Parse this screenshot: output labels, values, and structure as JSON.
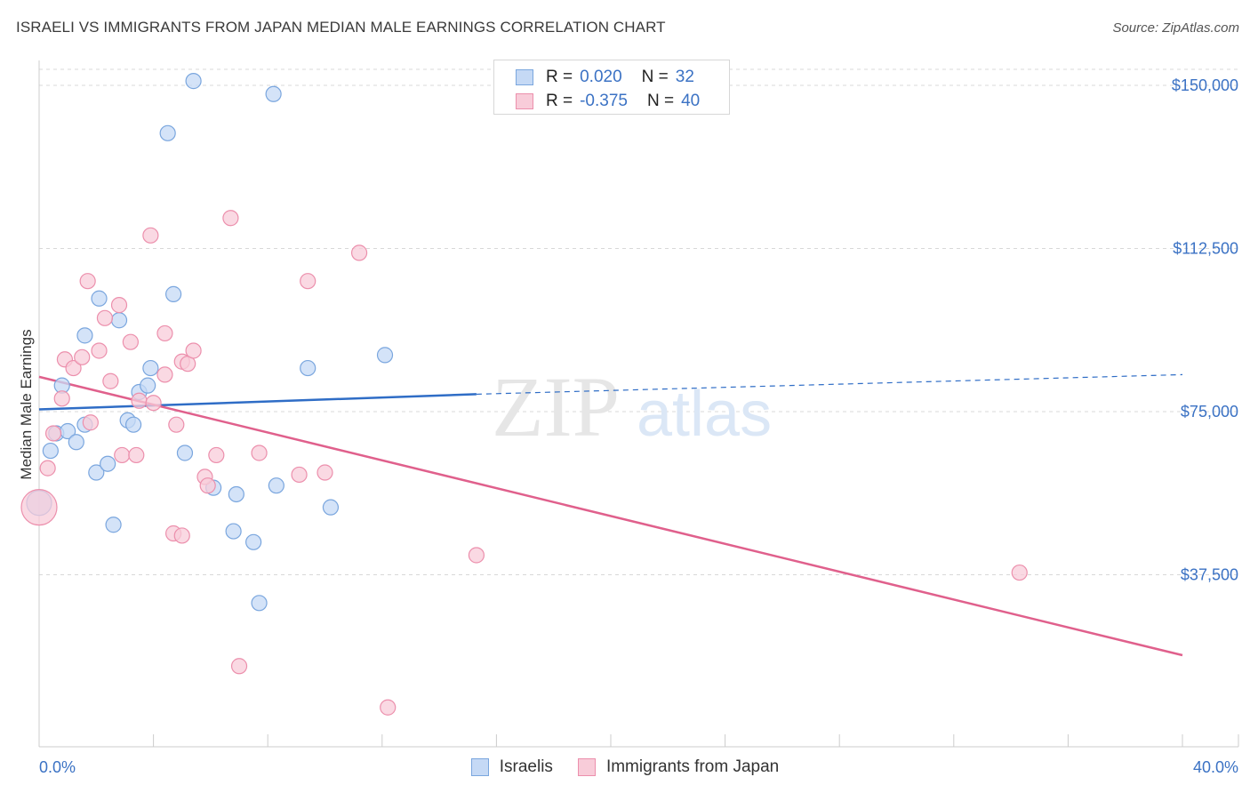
{
  "title": "ISRAELI VS IMMIGRANTS FROM JAPAN MEDIAN MALE EARNINGS CORRELATION CHART",
  "source": "Source: ZipAtlas.com",
  "watermark": {
    "zip": "ZIP",
    "atlas": "atlas"
  },
  "legend": {
    "rows": [
      {
        "r_label": "R =",
        "r_value": "0.020",
        "n_label": "N =",
        "n_value": "32"
      },
      {
        "r_label": "R =",
        "r_value": "-0.375",
        "n_label": "N =",
        "n_value": "40"
      }
    ]
  },
  "bottom_legend": {
    "israelis": "Israelis",
    "japan": "Immigrants from Japan"
  },
  "colors": {
    "israelis_fill": "#c5d9f5",
    "israelis_stroke": "#7aa6de",
    "israelis_line": "#2f6dc6",
    "japan_fill": "#f8ccd9",
    "japan_stroke": "#ec8fac",
    "japan_line": "#e0608c",
    "tick_text": "#3b72c4",
    "grid": "#d8d8d8"
  },
  "chart_data": {
    "type": "scatter",
    "title": "ISRAELI VS IMMIGRANTS FROM JAPAN MEDIAN MALE EARNINGS CORRELATION CHART",
    "xlabel": "",
    "ylabel": "Median Male Earnings",
    "xlim": [
      0,
      40
    ],
    "ylim": [
      0,
      155000
    ],
    "x_tick_labels": [
      "0.0%",
      "40.0%"
    ],
    "y_ticks": [
      37500,
      75000,
      112500,
      150000
    ],
    "y_tick_labels": [
      "$37,500",
      "$75,000",
      "$112,500",
      "$150,000"
    ],
    "grid": "horizontal dashed",
    "series": [
      {
        "name": "Israelis",
        "color": "#7aa6de",
        "points": [
          [
            0.0,
            54000
          ],
          [
            0.4,
            66000
          ],
          [
            0.6,
            70000
          ],
          [
            0.8,
            81000
          ],
          [
            1.0,
            70500
          ],
          [
            1.3,
            68000
          ],
          [
            1.6,
            72000
          ],
          [
            1.6,
            92500
          ],
          [
            2.0,
            61000
          ],
          [
            2.1,
            101000
          ],
          [
            2.4,
            63000
          ],
          [
            2.6,
            49000
          ],
          [
            2.8,
            96000
          ],
          [
            3.1,
            73000
          ],
          [
            3.3,
            72000
          ],
          [
            3.5,
            79500
          ],
          [
            3.9,
            85000
          ],
          [
            3.8,
            81000
          ],
          [
            4.5,
            139000
          ],
          [
            4.7,
            102000
          ],
          [
            5.1,
            65500
          ],
          [
            5.4,
            151000
          ],
          [
            6.1,
            57500
          ],
          [
            6.8,
            47500
          ],
          [
            6.9,
            56000
          ],
          [
            7.5,
            45000
          ],
          [
            7.7,
            31000
          ],
          [
            8.2,
            148000
          ],
          [
            8.3,
            58000
          ],
          [
            9.4,
            85000
          ],
          [
            10.2,
            53000
          ],
          [
            12.1,
            88000
          ]
        ]
      },
      {
        "name": "Immigrants from Japan",
        "color": "#ec8fac",
        "points": [
          [
            0.0,
            53000
          ],
          [
            0.3,
            62000
          ],
          [
            0.5,
            70000
          ],
          [
            0.8,
            78000
          ],
          [
            0.9,
            87000
          ],
          [
            1.2,
            85000
          ],
          [
            1.5,
            87500
          ],
          [
            1.7,
            105000
          ],
          [
            1.8,
            72500
          ],
          [
            2.1,
            89000
          ],
          [
            2.3,
            96500
          ],
          [
            2.5,
            82000
          ],
          [
            2.8,
            99500
          ],
          [
            2.9,
            65000
          ],
          [
            3.2,
            91000
          ],
          [
            3.4,
            65000
          ],
          [
            3.5,
            77500
          ],
          [
            3.9,
            115500
          ],
          [
            4.0,
            77000
          ],
          [
            4.4,
            83500
          ],
          [
            4.4,
            93000
          ],
          [
            4.7,
            47000
          ],
          [
            4.8,
            72000
          ],
          [
            5.0,
            46500
          ],
          [
            5.0,
            86500
          ],
          [
            5.2,
            86000
          ],
          [
            5.4,
            89000
          ],
          [
            5.8,
            60000
          ],
          [
            5.9,
            58000
          ],
          [
            6.2,
            65000
          ],
          [
            6.7,
            119500
          ],
          [
            7.0,
            16500
          ],
          [
            7.7,
            65500
          ],
          [
            9.1,
            60500
          ],
          [
            9.4,
            105000
          ],
          [
            10.0,
            61000
          ],
          [
            11.2,
            111500
          ],
          [
            12.2,
            7000
          ],
          [
            15.3,
            42000
          ],
          [
            34.3,
            38000
          ]
        ]
      }
    ],
    "trend_lines": [
      {
        "series": "Israelis",
        "x": [
          0,
          15.3
        ],
        "y": [
          75500,
          79000
        ],
        "extended_dashed_to": [
          40,
          83500
        ]
      },
      {
        "series": "Immigrants from Japan",
        "x": [
          0,
          40
        ],
        "y": [
          83000,
          19000
        ]
      }
    ]
  }
}
